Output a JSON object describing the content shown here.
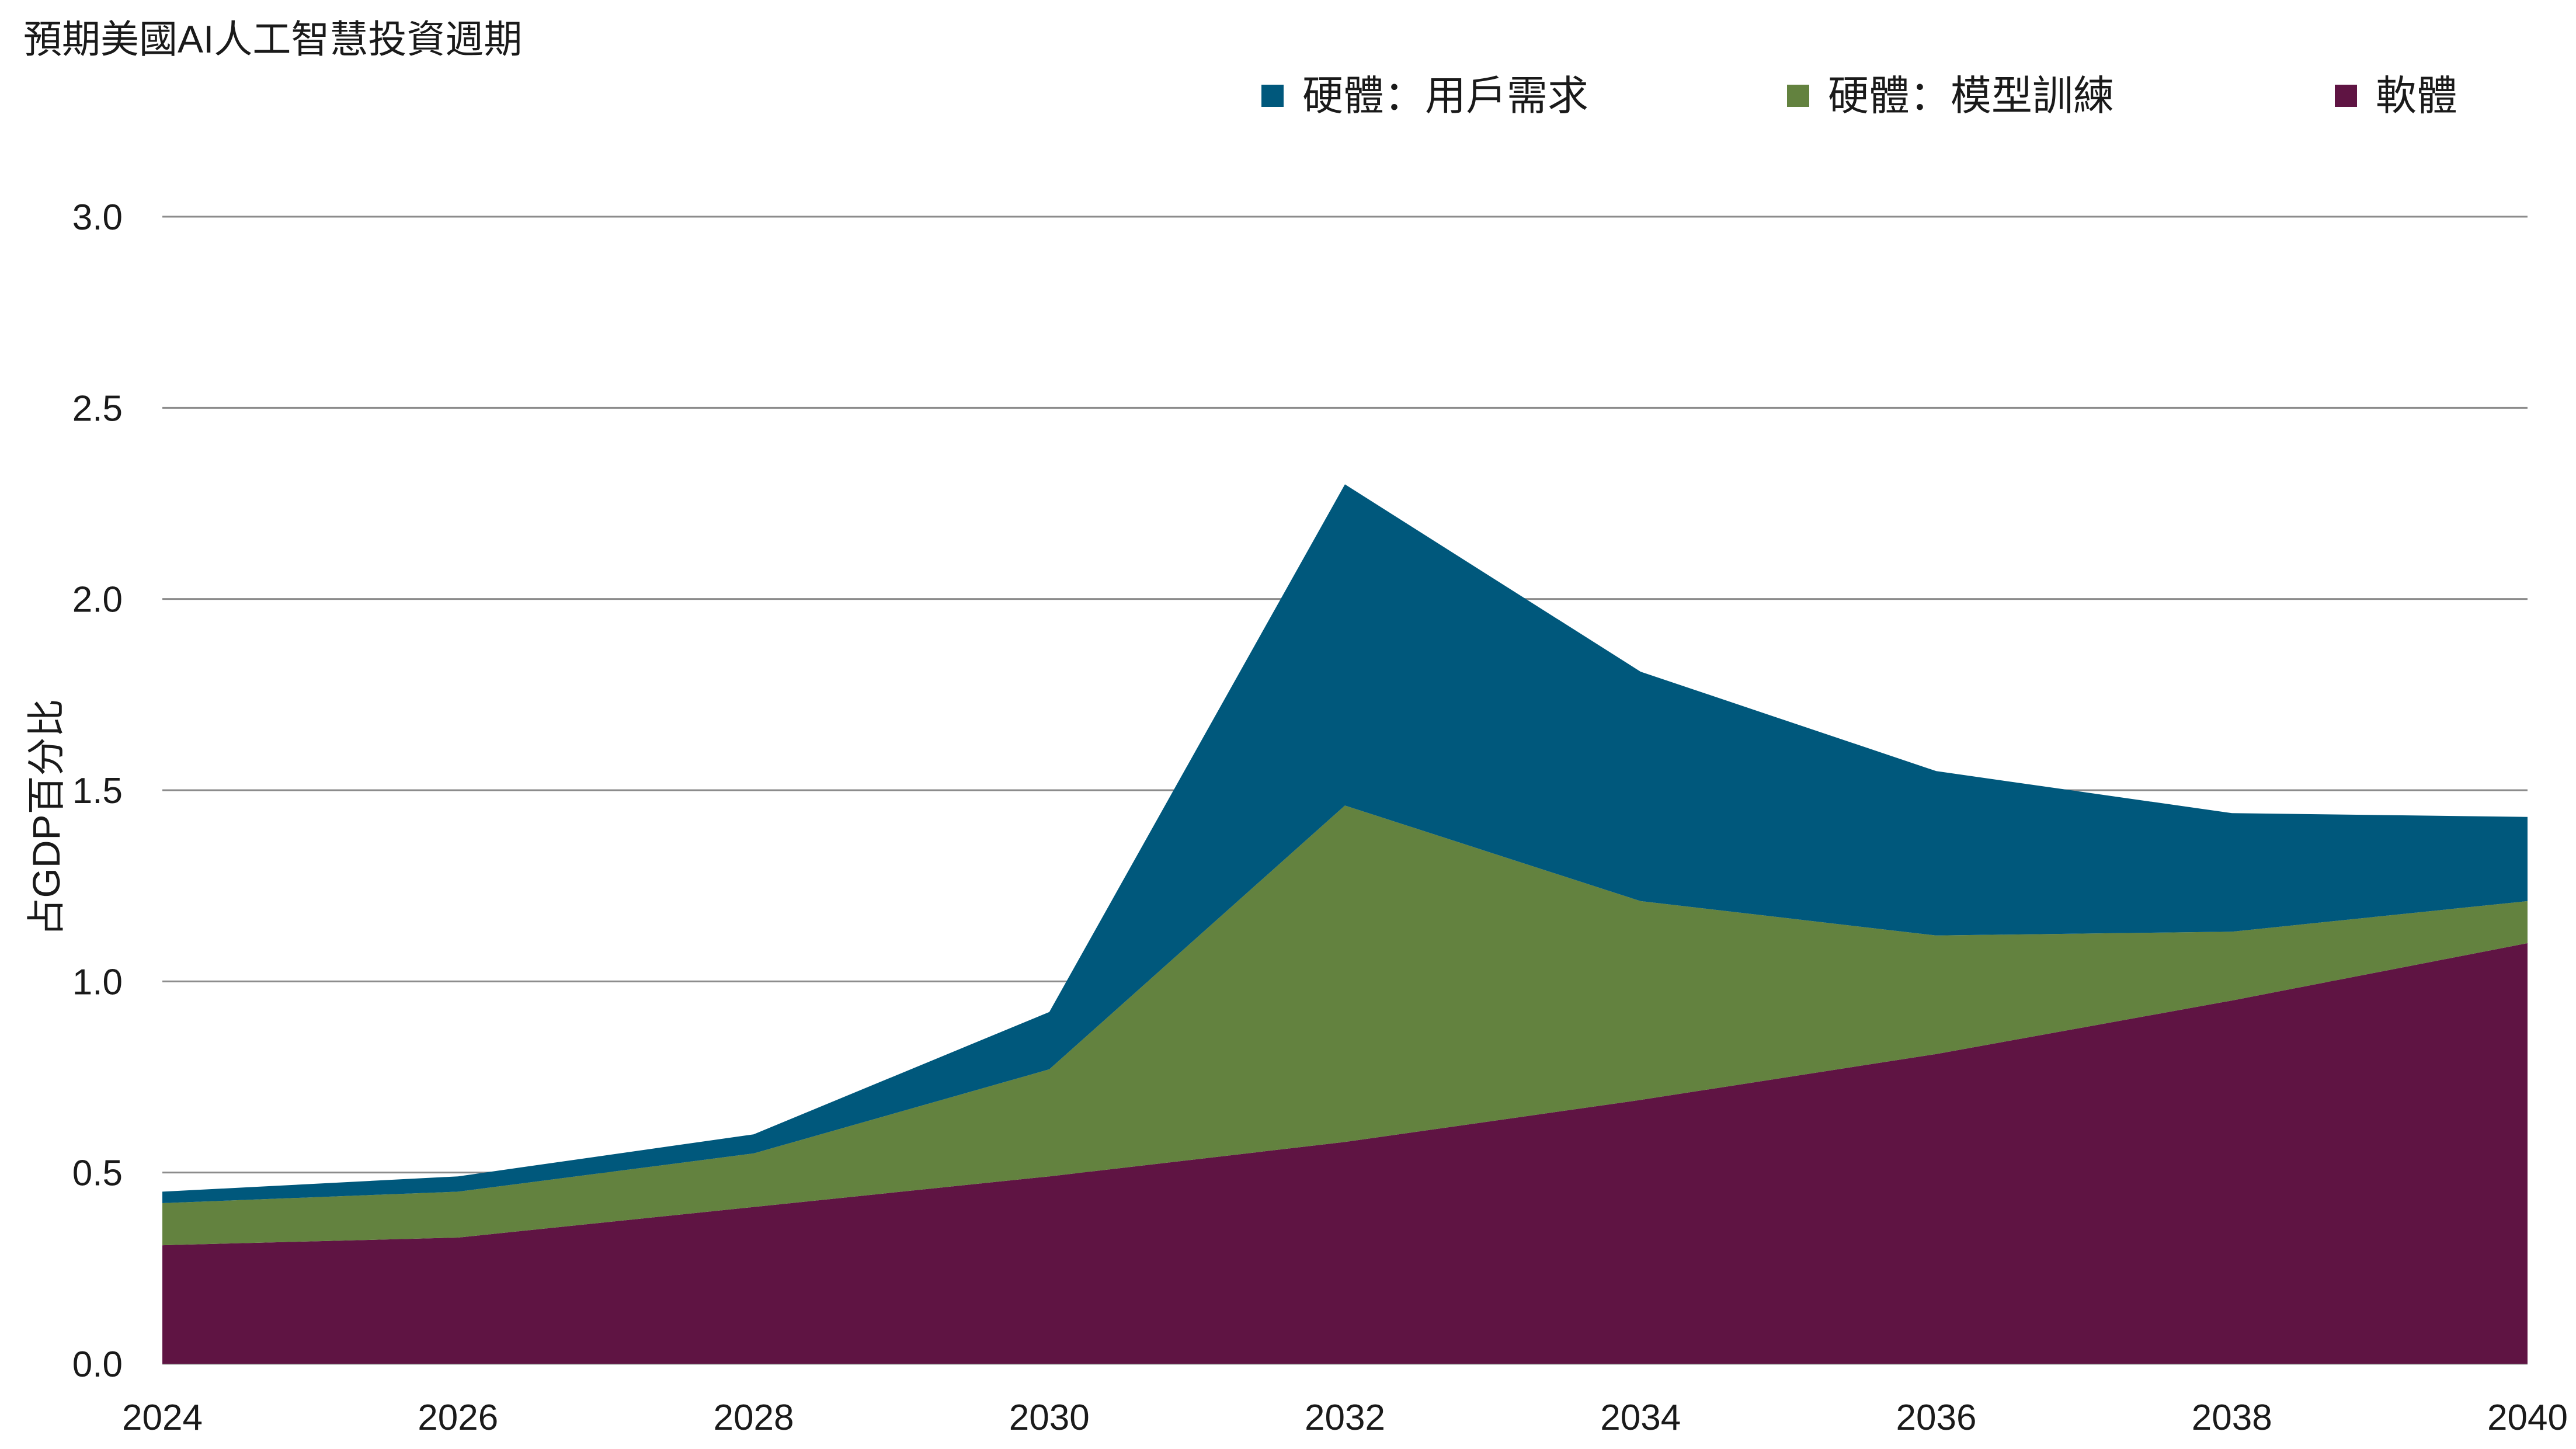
{
  "chart_data": {
    "type": "area",
    "stacked": true,
    "title": "預期美國AI人工智慧投資週期",
    "xlabel": "",
    "ylabel": "占GDP百分比",
    "x": [
      2024,
      2026,
      2028,
      2030,
      2032,
      2034,
      2036,
      2038,
      2040
    ],
    "xlim": [
      2024,
      2040
    ],
    "ylim": [
      0,
      3.0
    ],
    "yticks": [
      "0.0",
      "0.5",
      "1.0",
      "1.5",
      "2.0",
      "2.5",
      "3.0"
    ],
    "xticks": [
      "2024",
      "2026",
      "2028",
      "2030",
      "2032",
      "2034",
      "2036",
      "2038",
      "2040"
    ],
    "grid": true,
    "legend_position": "top",
    "series": [
      {
        "name": "軟體",
        "color": "#5f1443",
        "values": [
          0.31,
          0.33,
          0.41,
          0.49,
          0.58,
          0.69,
          0.81,
          0.95,
          1.1
        ]
      },
      {
        "name": "硬體：模型訓練",
        "color": "#63823f",
        "values": [
          0.11,
          0.12,
          0.14,
          0.28,
          0.88,
          0.52,
          0.31,
          0.18,
          0.11
        ]
      },
      {
        "name": "硬體：用戶需求",
        "color": "#00587c",
        "values": [
          0.03,
          0.04,
          0.05,
          0.15,
          0.84,
          0.6,
          0.43,
          0.31,
          0.22
        ]
      }
    ],
    "legend_order": [
      "硬體：用戶需求",
      "硬體：模型訓練",
      "軟體"
    ]
  }
}
